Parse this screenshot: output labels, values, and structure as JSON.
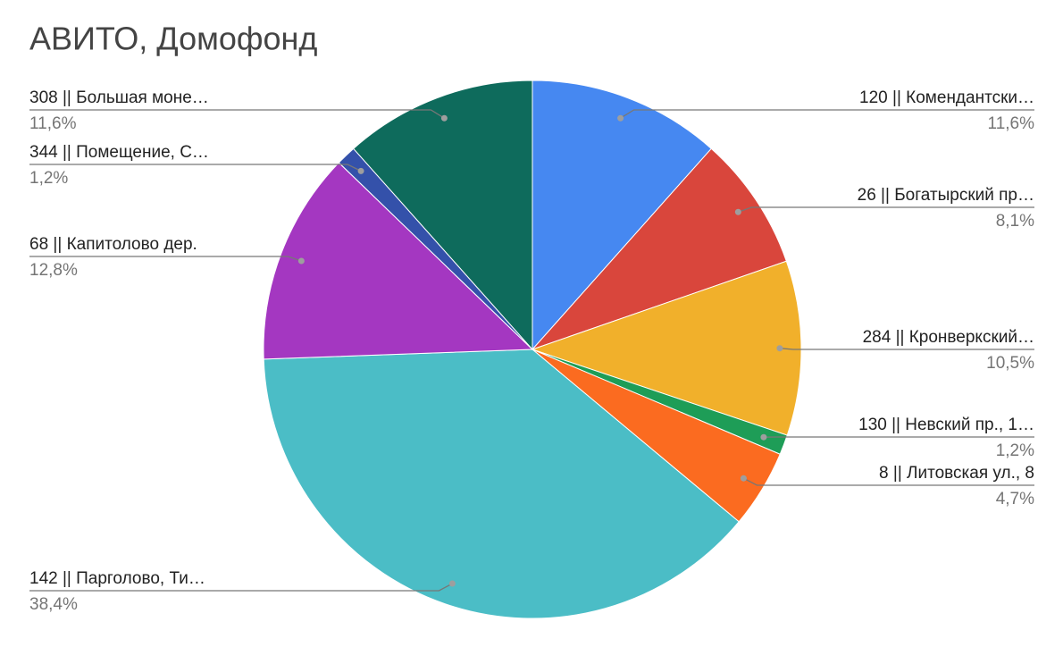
{
  "chart_data": {
    "type": "pie",
    "title": "АВИТО, Домофонд",
    "categories": [
      "120 || Комендантски…",
      "26 || Богатырский пр…",
      "284 || Кронверкский…",
      "130 || Невский пр., 1…",
      "8 || Литовская ул., 8",
      "142 || Парголово, Ти…",
      "68 || Капитолово дер.",
      "344 || Помещение, С…",
      "308 || Большая моне…"
    ],
    "values": [
      11.6,
      8.1,
      10.5,
      1.2,
      4.7,
      38.4,
      12.8,
      1.2,
      11.6
    ],
    "value_labels": [
      "11,6%",
      "8,1%",
      "10,5%",
      "1,2%",
      "4,7%",
      "38,4%",
      "12,8%",
      "1,2%",
      "11,6%"
    ],
    "colors": [
      "#4688f1",
      "#d9463c",
      "#f1b02b",
      "#1e9d57",
      "#fb6b20",
      "#4bbdc6",
      "#a437c1",
      "#3451aa",
      "#0e6b5c"
    ]
  }
}
